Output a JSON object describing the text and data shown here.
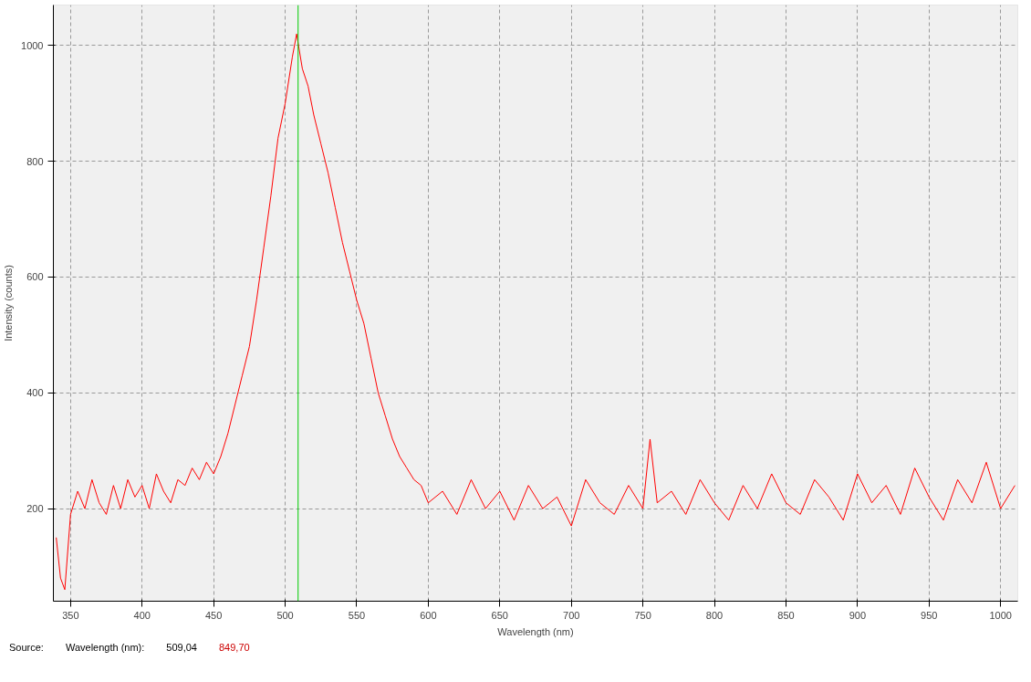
{
  "chart_data": {
    "type": "line",
    "xlabel": "Wavelength (nm)",
    "ylabel": "Intensity (counts)",
    "x": [
      340,
      343,
      346,
      350,
      355,
      360,
      365,
      370,
      375,
      380,
      385,
      390,
      395,
      400,
      405,
      410,
      415,
      420,
      425,
      430,
      435,
      440,
      445,
      450,
      455,
      460,
      465,
      470,
      475,
      480,
      485,
      490,
      495,
      500,
      505,
      508,
      512,
      516,
      520,
      525,
      530,
      535,
      540,
      545,
      550,
      555,
      560,
      565,
      570,
      575,
      580,
      585,
      590,
      595,
      600,
      610,
      620,
      630,
      640,
      650,
      660,
      670,
      680,
      690,
      700,
      710,
      720,
      730,
      740,
      750,
      755,
      760,
      770,
      780,
      790,
      800,
      810,
      820,
      830,
      840,
      850,
      860,
      870,
      880,
      890,
      900,
      910,
      920,
      930,
      940,
      950,
      960,
      970,
      980,
      990,
      1000,
      1010
    ],
    "series": [
      {
        "color": "#ff0000",
        "values": [
          150,
          80,
          60,
          190,
          230,
          200,
          250,
          210,
          190,
          240,
          200,
          250,
          220,
          240,
          200,
          260,
          230,
          210,
          250,
          240,
          270,
          250,
          280,
          260,
          290,
          330,
          380,
          430,
          480,
          560,
          650,
          740,
          840,
          900,
          980,
          1020,
          960,
          930,
          880,
          830,
          780,
          720,
          660,
          610,
          560,
          520,
          460,
          400,
          360,
          320,
          290,
          270,
          250,
          240,
          210,
          230,
          190,
          250,
          200,
          230,
          180,
          240,
          200,
          220,
          170,
          250,
          210,
          190,
          240,
          200,
          320,
          210,
          230,
          190,
          250,
          210,
          180,
          240,
          200,
          260,
          210,
          190,
          250,
          220,
          180,
          260,
          210,
          240,
          190,
          270,
          220,
          180,
          250,
          210,
          280,
          200,
          240
        ]
      }
    ],
    "xlim": [
      338,
      1012
    ],
    "ylim": [
      40,
      1070
    ],
    "xticks": [
      350,
      400,
      450,
      500,
      550,
      600,
      650,
      700,
      750,
      800,
      850,
      900,
      950,
      1000
    ],
    "yticks": [
      200,
      400,
      600,
      800,
      1000
    ],
    "grid": true,
    "ref_lines": [
      {
        "axis": "x",
        "value": 509.04,
        "color": "#00cc00"
      }
    ],
    "annotations": [
      "Source:",
      "Wavelength (nm):",
      "509,04",
      "849,70"
    ]
  }
}
